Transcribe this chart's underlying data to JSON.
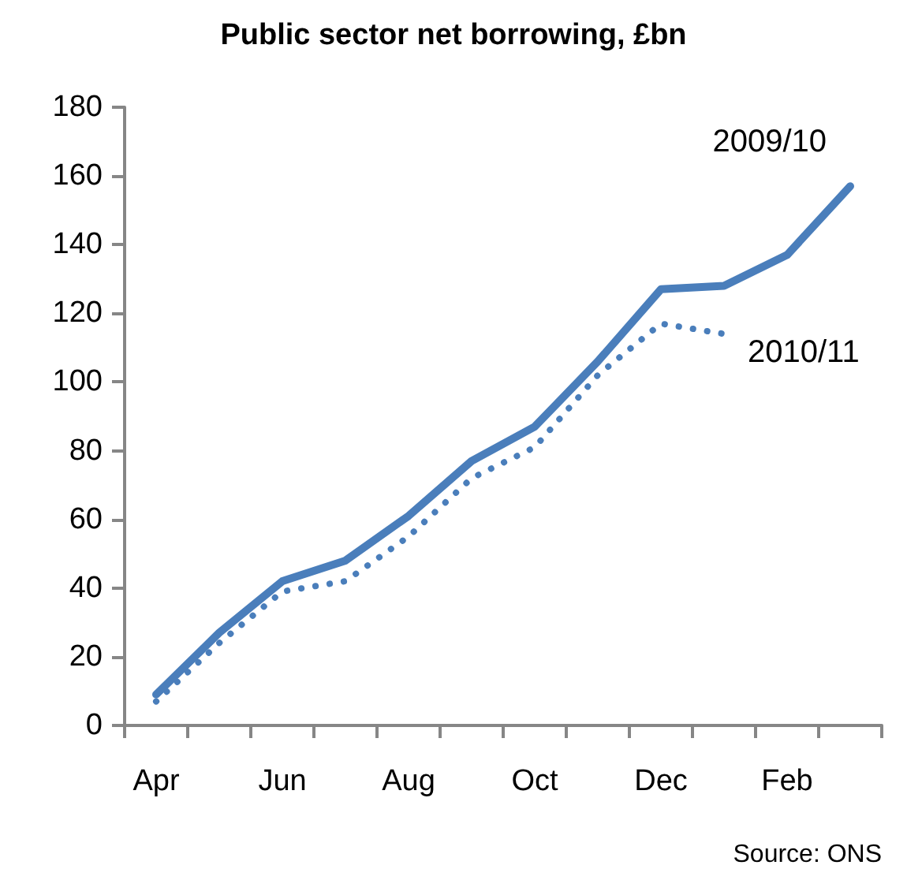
{
  "chart_data": {
    "type": "line",
    "title": "Public sector net borrowing, £bn",
    "categories": [
      "Apr",
      null,
      "Jun",
      null,
      "Aug",
      null,
      "Oct",
      null,
      "Dec",
      null,
      "Feb",
      null
    ],
    "series": [
      {
        "name": "2009/10",
        "color": "#4a7ebb",
        "line_style": "solid",
        "values": [
          9,
          27,
          42,
          48,
          61,
          77,
          87,
          106,
          127,
          128,
          137,
          157
        ]
      },
      {
        "name": "2010/11",
        "color": "#4a7ebb",
        "line_style": "dotted",
        "values": [
          7,
          24,
          39,
          42,
          55,
          72,
          81,
          102,
          117,
          114,
          null,
          null
        ]
      }
    ],
    "ylim": [
      0,
      180
    ],
    "yticks": [
      0,
      20,
      40,
      60,
      80,
      100,
      120,
      140,
      160,
      180
    ],
    "grid": false,
    "legend": false,
    "marker": "none",
    "annotations": [
      "Source: ONS"
    ]
  }
}
